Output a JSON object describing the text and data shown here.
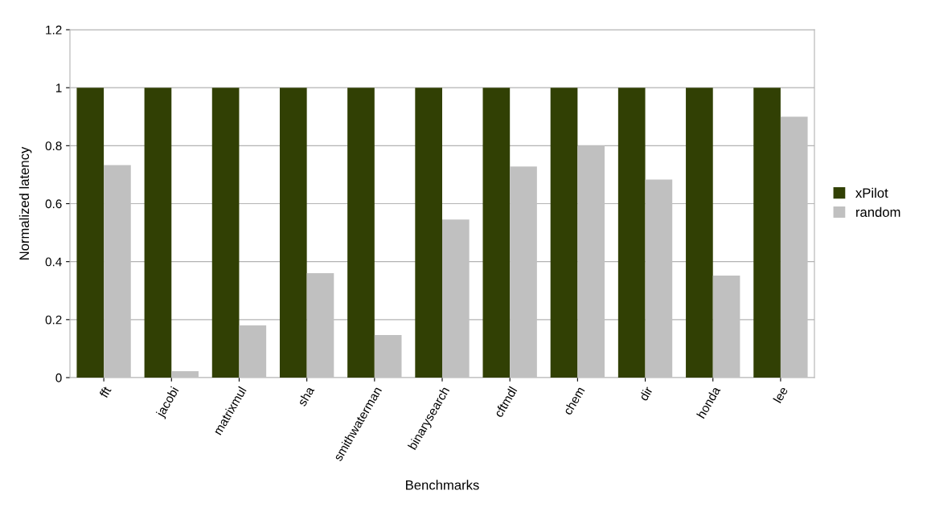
{
  "chart_data": {
    "type": "bar",
    "xlabel": "Benchmarks",
    "ylabel": "Normalized latency",
    "categories": [
      "fft",
      "jacobi",
      "matrixmul",
      "sha",
      "smithwaterman",
      "binarysearch",
      "cftmdl",
      "chem",
      "dir",
      "honda",
      "lee"
    ],
    "series": [
      {
        "name": "xPilot",
        "color": "#314004",
        "values": [
          1,
          1,
          1,
          1,
          1,
          1,
          1,
          1,
          1,
          1,
          1
        ]
      },
      {
        "name": "random",
        "color": "#c0c0c0",
        "values": [
          0.733,
          0.022,
          0.18,
          0.36,
          0.147,
          0.545,
          0.728,
          0.8,
          0.683,
          0.352,
          0.9
        ]
      }
    ],
    "ylim": [
      0,
      1.2
    ],
    "yticks": [
      0,
      0.2,
      0.4,
      0.6,
      0.8,
      1,
      1.2
    ],
    "grid": "y",
    "legend": "right"
  }
}
